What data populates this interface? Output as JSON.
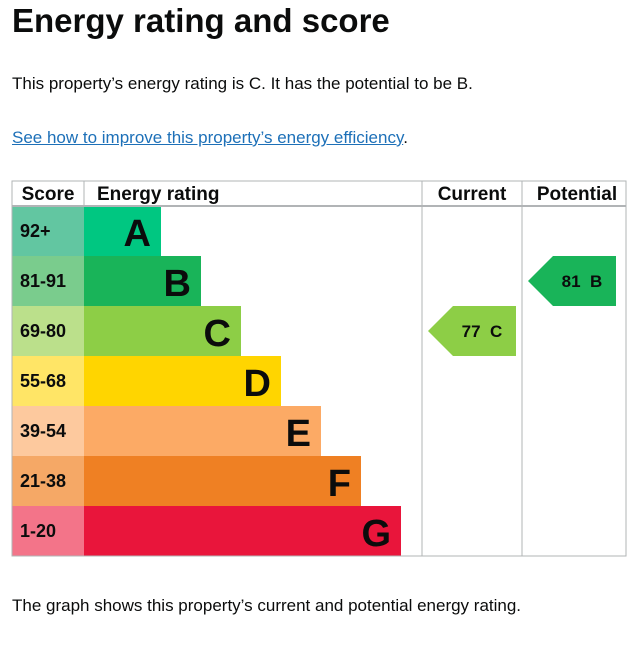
{
  "title": "Energy rating and score",
  "summary": "This property’s energy rating is C. It has the potential to be B.",
  "link": "See how to improve this property’s energy efficiency",
  "link_suffix": ".",
  "footer": "The graph shows this property’s current and potential energy rating.",
  "chart_data": {
    "type": "table",
    "headers": [
      "Score",
      "Energy rating",
      "Current",
      "Potential"
    ],
    "bands": [
      {
        "letter": "A",
        "range": "92+",
        "color": "#00c781",
        "score_color": "#62c6a1"
      },
      {
        "letter": "B",
        "range": "81-91",
        "color": "#19b459",
        "score_color": "#7acc8d"
      },
      {
        "letter": "C",
        "range": "69-80",
        "color": "#8dce46",
        "score_color": "#bbe08b"
      },
      {
        "letter": "D",
        "range": "55-68",
        "color": "#ffd500",
        "score_color": "#ffe566"
      },
      {
        "letter": "E",
        "range": "39-54",
        "color": "#fcaa65",
        "score_color": "#fdc99e"
      },
      {
        "letter": "F",
        "range": "21-38",
        "color": "#ef8023",
        "score_color": "#f5a866"
      },
      {
        "letter": "G",
        "range": "1-20",
        "color": "#e9153b",
        "score_color": "#f37489"
      }
    ],
    "current": {
      "score": 77,
      "letter": "C",
      "label": "77 C"
    },
    "potential": {
      "score": 81,
      "letter": "B",
      "label": "81 B"
    }
  }
}
